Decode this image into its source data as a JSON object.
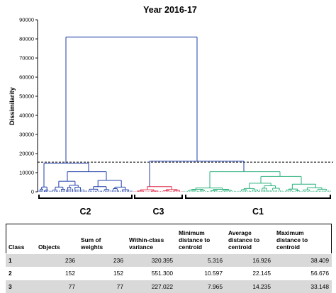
{
  "chart_data": {
    "type": "dendrogram",
    "title": "Year 2016-17",
    "ylabel": "Dissimilarity",
    "ylim": [
      0,
      90000
    ],
    "yticks": [
      0,
      10000,
      20000,
      30000,
      40000,
      50000,
      60000,
      70000,
      80000,
      90000
    ],
    "truncation_level": 15500,
    "merges": [
      {
        "name": "C2",
        "height": 15000
      },
      {
        "name": "C1 and C3",
        "height": 16000
      },
      {
        "name": "root",
        "height": 81000
      }
    ],
    "clusters": [
      {
        "name": "C2",
        "color": "#1f3fa8",
        "objects": 152
      },
      {
        "name": "C3",
        "color": "#e0304d",
        "objects": 77
      },
      {
        "name": "C1",
        "color": "#27b07a",
        "objects": 236
      }
    ]
  },
  "table": {
    "headers": [
      "Class",
      "Objects",
      "Sum of weights",
      "Within-class variance",
      "Minimum distance to centroid",
      "Average distance to centroid",
      "Maximum distance to centroid"
    ],
    "rows": [
      [
        "1",
        "236",
        "236",
        "320.395",
        "5.316",
        "16.926",
        "38.409"
      ],
      [
        "2",
        "152",
        "152",
        "551.300",
        "10.597",
        "22.145",
        "56.676"
      ],
      [
        "3",
        "77",
        "77",
        "227.022",
        "7.965",
        "14.235",
        "33.148"
      ]
    ]
  }
}
